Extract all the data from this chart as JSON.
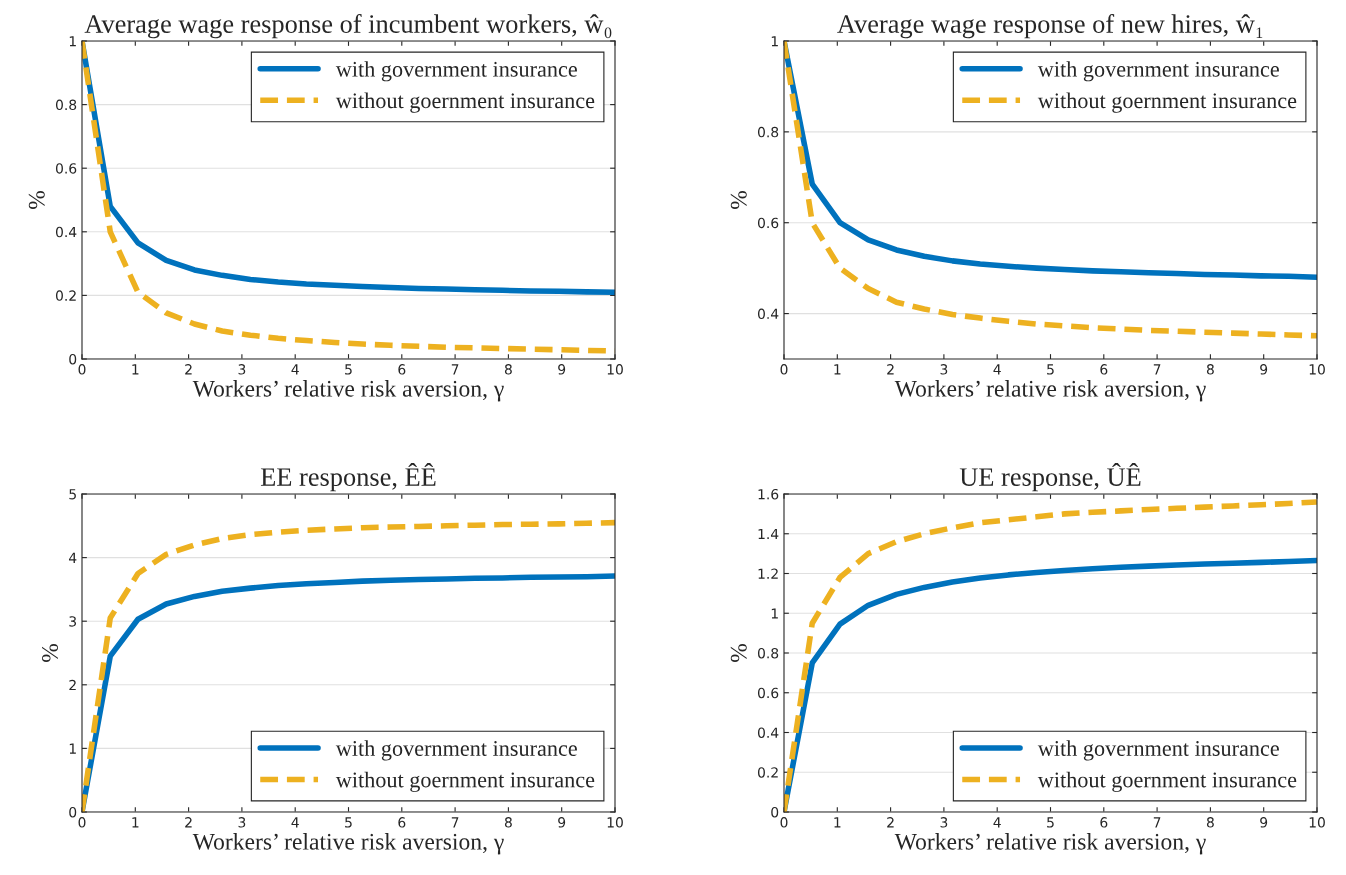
{
  "chart_data": [
    {
      "type": "line",
      "title": "Average wage response of incumbent workers, ŵ₀",
      "xlabel": "Workers’ relative risk aversion, γ",
      "ylabel": "%",
      "x": [
        0,
        0.53,
        1.05,
        1.58,
        2.11,
        2.63,
        3.16,
        3.68,
        4.21,
        4.74,
        5.26,
        5.79,
        6.32,
        6.84,
        7.37,
        7.89,
        8.42,
        8.95,
        9.47,
        10
      ],
      "series": [
        {
          "name": "with government insurance",
          "color": "#0072bd",
          "line_style": "solid",
          "values": [
            1.0,
            0.48,
            0.365,
            0.31,
            0.28,
            0.263,
            0.25,
            0.242,
            0.236,
            0.232,
            0.228,
            0.225,
            0.222,
            0.22,
            0.218,
            0.216,
            0.214,
            0.213,
            0.211,
            0.21
          ]
        },
        {
          "name": "without goernment insurance",
          "color": "#edb120",
          "line_style": "dashed",
          "values": [
            1.0,
            0.4,
            0.21,
            0.145,
            0.11,
            0.088,
            0.075,
            0.065,
            0.058,
            0.052,
            0.047,
            0.043,
            0.04,
            0.037,
            0.035,
            0.033,
            0.031,
            0.029,
            0.027,
            0.025
          ]
        }
      ],
      "xlim": [
        0,
        10
      ],
      "xticks": [
        0,
        1,
        2,
        3,
        4,
        5,
        6,
        7,
        8,
        9,
        10
      ],
      "ylim": [
        0,
        1
      ],
      "yticks": [
        0,
        0.2,
        0.4,
        0.6,
        0.8,
        1
      ],
      "grid": "y",
      "legend": "top right"
    },
    {
      "type": "line",
      "title": "Average wage response of new hires, ŵ₁",
      "xlabel": "Workers’ relative risk aversion, γ",
      "ylabel": "%",
      "x": [
        0,
        0.53,
        1.05,
        1.58,
        2.11,
        2.63,
        3.16,
        3.68,
        4.21,
        4.74,
        5.26,
        5.79,
        6.32,
        6.84,
        7.37,
        7.89,
        8.42,
        8.95,
        9.47,
        10
      ],
      "series": [
        {
          "name": "with government insurance",
          "color": "#0072bd",
          "line_style": "solid",
          "values": [
            1.0,
            0.685,
            0.6,
            0.562,
            0.54,
            0.526,
            0.516,
            0.509,
            0.504,
            0.5,
            0.497,
            0.494,
            0.492,
            0.49,
            0.488,
            0.486,
            0.485,
            0.483,
            0.482,
            0.48
          ]
        },
        {
          "name": "without goernment insurance",
          "color": "#edb120",
          "line_style": "dashed",
          "values": [
            1.0,
            0.6,
            0.5,
            0.455,
            0.425,
            0.41,
            0.398,
            0.39,
            0.383,
            0.377,
            0.373,
            0.369,
            0.366,
            0.363,
            0.361,
            0.359,
            0.357,
            0.355,
            0.353,
            0.351
          ]
        }
      ],
      "xlim": [
        0,
        10
      ],
      "xticks": [
        0,
        1,
        2,
        3,
        4,
        5,
        6,
        7,
        8,
        9,
        10
      ],
      "ylim": [
        0.3,
        1
      ],
      "yticks": [
        0.4,
        0.6,
        0.8,
        1
      ],
      "grid": "y",
      "legend": "top right"
    },
    {
      "type": "line",
      "title": "EE response, ÊÊ",
      "xlabel": "Workers’ relative risk aversion, γ",
      "ylabel": "%",
      "x": [
        0,
        0.53,
        1.05,
        1.58,
        2.11,
        2.63,
        3.16,
        3.68,
        4.21,
        4.74,
        5.26,
        5.79,
        6.32,
        6.84,
        7.37,
        7.89,
        8.42,
        8.95,
        9.47,
        10
      ],
      "series": [
        {
          "name": "with government insurance",
          "color": "#0072bd",
          "line_style": "solid",
          "values": [
            0,
            2.45,
            3.03,
            3.27,
            3.39,
            3.47,
            3.52,
            3.56,
            3.59,
            3.61,
            3.63,
            3.645,
            3.655,
            3.665,
            3.675,
            3.68,
            3.69,
            3.695,
            3.7,
            3.71
          ]
        },
        {
          "name": "without goernment insurance",
          "color": "#edb120",
          "line_style": "dashed",
          "values": [
            0,
            3.05,
            3.75,
            4.05,
            4.2,
            4.3,
            4.36,
            4.4,
            4.43,
            4.45,
            4.47,
            4.48,
            4.49,
            4.5,
            4.51,
            4.52,
            4.525,
            4.53,
            4.54,
            4.55
          ]
        }
      ],
      "xlim": [
        0,
        10
      ],
      "xticks": [
        0,
        1,
        2,
        3,
        4,
        5,
        6,
        7,
        8,
        9,
        10
      ],
      "ylim": [
        0,
        5
      ],
      "yticks": [
        0,
        1,
        2,
        3,
        4,
        5
      ],
      "grid": "y",
      "legend": "bottom right"
    },
    {
      "type": "line",
      "title": "UE response, ÛÊ",
      "xlabel": "Workers’ relative risk aversion, γ",
      "ylabel": "%",
      "x": [
        0,
        0.53,
        1.05,
        1.58,
        2.11,
        2.63,
        3.16,
        3.68,
        4.21,
        4.74,
        5.26,
        5.79,
        6.32,
        6.84,
        7.37,
        7.89,
        8.42,
        8.95,
        9.47,
        10
      ],
      "series": [
        {
          "name": "with government insurance",
          "color": "#0072bd",
          "line_style": "solid",
          "values": [
            0,
            0.75,
            0.945,
            1.04,
            1.095,
            1.13,
            1.157,
            1.177,
            1.193,
            1.205,
            1.215,
            1.224,
            1.231,
            1.237,
            1.243,
            1.248,
            1.252,
            1.256,
            1.26,
            1.265
          ]
        },
        {
          "name": "without goernment insurance",
          "color": "#edb120",
          "line_style": "dashed",
          "values": [
            0,
            0.95,
            1.18,
            1.3,
            1.36,
            1.4,
            1.43,
            1.455,
            1.47,
            1.485,
            1.5,
            1.508,
            1.515,
            1.522,
            1.528,
            1.534,
            1.54,
            1.546,
            1.552,
            1.56
          ]
        }
      ],
      "xlim": [
        0,
        10
      ],
      "xticks": [
        0,
        1,
        2,
        3,
        4,
        5,
        6,
        7,
        8,
        9,
        10
      ],
      "ylim": [
        0,
        1.6
      ],
      "yticks": [
        0,
        0.2,
        0.4,
        0.6,
        0.8,
        1,
        1.2,
        1.4,
        1.6
      ],
      "grid": "y",
      "legend": "bottom right"
    }
  ]
}
